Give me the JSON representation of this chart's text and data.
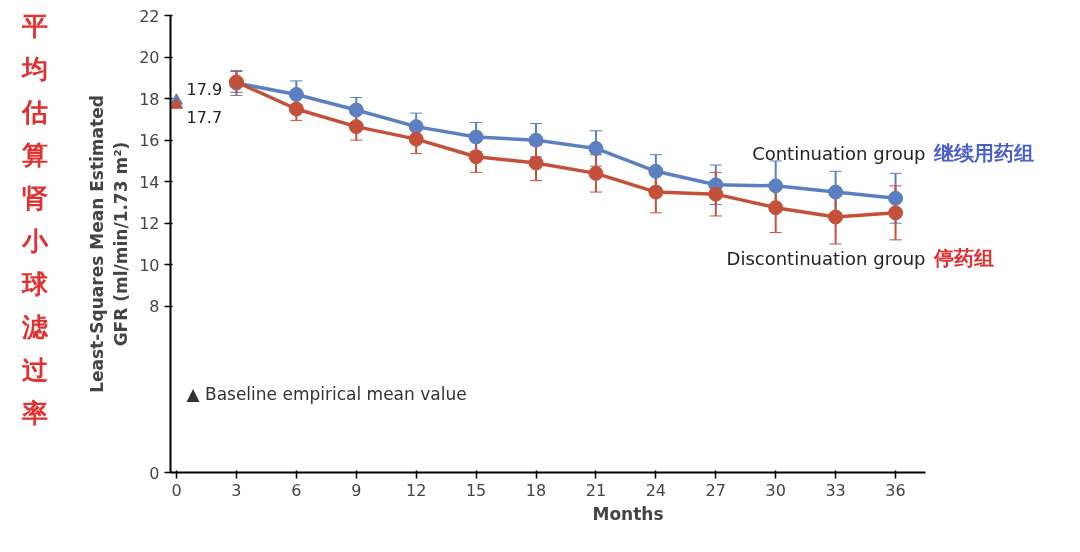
{
  "chart_data": {
    "type": "line",
    "xlabel": "Months",
    "ylabel": "Least-Squares Mean Estimated\nGFR (ml/min/1.73 m²)",
    "x": [
      3,
      6,
      9,
      12,
      15,
      18,
      21,
      24,
      27,
      30,
      33,
      36
    ],
    "xlim": [
      -0.3,
      37.5
    ],
    "xticks": [
      0,
      3,
      6,
      9,
      12,
      15,
      18,
      21,
      24,
      27,
      30,
      33,
      36
    ],
    "ylim": [
      0,
      22
    ],
    "yticks": [
      0,
      8,
      10,
      12,
      14,
      16,
      18,
      20,
      22
    ],
    "grid": false,
    "marker": "circle",
    "line_style": "solid",
    "series": [
      {
        "name": "Continuation group",
        "color": "#5b7fc0",
        "values": [
          18.75,
          18.2,
          17.45,
          16.65,
          16.15,
          16.0,
          15.6,
          14.5,
          13.85,
          13.8,
          13.5,
          13.2
        ],
        "errors": [
          0.6,
          0.65,
          0.6,
          0.65,
          0.7,
          0.8,
          0.85,
          0.8,
          0.95,
          1.2,
          1.0,
          1.2
        ]
      },
      {
        "name": "Discontinuation group",
        "color": "#c4503a",
        "values": [
          18.8,
          17.5,
          16.65,
          16.05,
          15.2,
          14.9,
          14.4,
          13.5,
          13.4,
          12.75,
          12.3,
          12.5
        ],
        "errors": [
          0.5,
          0.55,
          0.65,
          0.7,
          0.75,
          0.85,
          0.9,
          1.0,
          1.05,
          1.2,
          1.3,
          1.3
        ]
      },
      {
        "type": "scatter",
        "marker": "triangle",
        "color": "#5b7fc0",
        "x": [
          0
        ],
        "values": [
          17.9
        ],
        "value_labels": [
          "17.9"
        ]
      },
      {
        "type": "scatter",
        "marker": "triangle",
        "color": "#c4503a",
        "x": [
          0
        ],
        "values": [
          17.7
        ],
        "value_labels": [
          "17.7"
        ]
      }
    ],
    "annotations": [
      "平均估算肾小球滤过率",
      "继续用药组",
      "停药组",
      "▲ Baseline empirical mean value"
    ]
  }
}
